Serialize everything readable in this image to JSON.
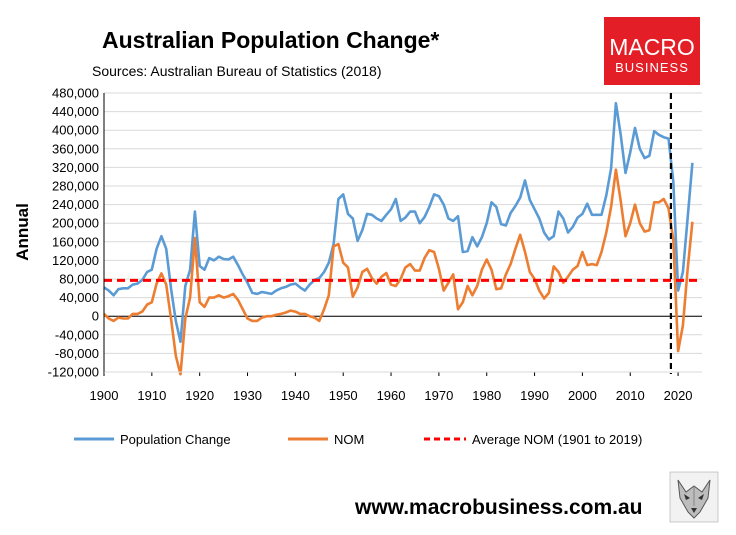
{
  "chart_data": {
    "type": "line",
    "title": "Australian Population Change*",
    "subtitle": "Sources: Australian Bureau of Statistics (2018)",
    "ylabel": "Annual",
    "xlabel": "",
    "xlim": [
      1900,
      2025
    ],
    "ylim": [
      -120000,
      480000
    ],
    "x_ticks": [
      1900,
      1910,
      1920,
      1930,
      1940,
      1950,
      1960,
      1970,
      1980,
      1990,
      2000,
      2010,
      2020
    ],
    "y_ticks": [
      -120000,
      -80000,
      -40000,
      0,
      40000,
      80000,
      120000,
      160000,
      200000,
      240000,
      280000,
      320000,
      360000,
      400000,
      440000,
      480000
    ],
    "y_tick_labels": [
      "-120,000",
      "-80,000",
      "-40,000",
      "0",
      "40,000",
      "80,000",
      "120,000",
      "160,000",
      "200,000",
      "240,000",
      "280,000",
      "320,000",
      "360,000",
      "400,000",
      "440,000",
      "480,000"
    ],
    "grid": true,
    "legend_position": "bottom",
    "vertical_marker_x": 2018.5,
    "series": [
      {
        "name": "Population Change",
        "color": "#5b9bd5",
        "style": "solid",
        "points": [
          [
            1900,
            62000
          ],
          [
            1901,
            55000
          ],
          [
            1902,
            45000
          ],
          [
            1903,
            58000
          ],
          [
            1904,
            60000
          ],
          [
            1905,
            60000
          ],
          [
            1906,
            68000
          ],
          [
            1907,
            70000
          ],
          [
            1908,
            78000
          ],
          [
            1909,
            95000
          ],
          [
            1910,
            100000
          ],
          [
            1911,
            145000
          ],
          [
            1912,
            172000
          ],
          [
            1913,
            145000
          ],
          [
            1914,
            60000
          ],
          [
            1915,
            -10000
          ],
          [
            1916,
            -55000
          ],
          [
            1917,
            65000
          ],
          [
            1918,
            100000
          ],
          [
            1919,
            225000
          ],
          [
            1920,
            108000
          ],
          [
            1921,
            100000
          ],
          [
            1922,
            125000
          ],
          [
            1923,
            120000
          ],
          [
            1924,
            128000
          ],
          [
            1925,
            123000
          ],
          [
            1926,
            122000
          ],
          [
            1927,
            128000
          ],
          [
            1928,
            110000
          ],
          [
            1929,
            90000
          ],
          [
            1930,
            72000
          ],
          [
            1931,
            50000
          ],
          [
            1932,
            48000
          ],
          [
            1933,
            52000
          ],
          [
            1934,
            50000
          ],
          [
            1935,
            48000
          ],
          [
            1936,
            55000
          ],
          [
            1937,
            60000
          ],
          [
            1938,
            63000
          ],
          [
            1939,
            68000
          ],
          [
            1940,
            70000
          ],
          [
            1941,
            62000
          ],
          [
            1942,
            55000
          ],
          [
            1943,
            68000
          ],
          [
            1944,
            78000
          ],
          [
            1945,
            82000
          ],
          [
            1946,
            95000
          ],
          [
            1947,
            115000
          ],
          [
            1948,
            155000
          ],
          [
            1949,
            252000
          ],
          [
            1950,
            262000
          ],
          [
            1951,
            220000
          ],
          [
            1952,
            210000
          ],
          [
            1953,
            162000
          ],
          [
            1954,
            185000
          ],
          [
            1955,
            220000
          ],
          [
            1956,
            218000
          ],
          [
            1957,
            210000
          ],
          [
            1958,
            205000
          ],
          [
            1959,
            218000
          ],
          [
            1960,
            230000
          ],
          [
            1961,
            252000
          ],
          [
            1962,
            205000
          ],
          [
            1963,
            212000
          ],
          [
            1964,
            225000
          ],
          [
            1965,
            225000
          ],
          [
            1966,
            200000
          ],
          [
            1967,
            213000
          ],
          [
            1968,
            235000
          ],
          [
            1969,
            262000
          ],
          [
            1970,
            258000
          ],
          [
            1971,
            240000
          ],
          [
            1972,
            210000
          ],
          [
            1973,
            205000
          ],
          [
            1974,
            215000
          ],
          [
            1975,
            138000
          ],
          [
            1976,
            140000
          ],
          [
            1977,
            170000
          ],
          [
            1978,
            150000
          ],
          [
            1979,
            170000
          ],
          [
            1980,
            200000
          ],
          [
            1981,
            245000
          ],
          [
            1982,
            235000
          ],
          [
            1983,
            198000
          ],
          [
            1984,
            195000
          ],
          [
            1985,
            222000
          ],
          [
            1986,
            237000
          ],
          [
            1987,
            255000
          ],
          [
            1988,
            292000
          ],
          [
            1989,
            250000
          ],
          [
            1990,
            230000
          ],
          [
            1991,
            210000
          ],
          [
            1992,
            180000
          ],
          [
            1993,
            165000
          ],
          [
            1994,
            172000
          ],
          [
            1995,
            225000
          ],
          [
            1996,
            210000
          ],
          [
            1997,
            180000
          ],
          [
            1998,
            192000
          ],
          [
            1999,
            212000
          ],
          [
            2000,
            220000
          ],
          [
            2001,
            242000
          ],
          [
            2002,
            218000
          ],
          [
            2003,
            218000
          ],
          [
            2004,
            218000
          ],
          [
            2005,
            260000
          ],
          [
            2006,
            318000
          ],
          [
            2007,
            458000
          ],
          [
            2008,
            390000
          ],
          [
            2009,
            308000
          ],
          [
            2010,
            352000
          ],
          [
            2011,
            405000
          ],
          [
            2012,
            360000
          ],
          [
            2013,
            340000
          ],
          [
            2014,
            345000
          ],
          [
            2015,
            398000
          ],
          [
            2016,
            390000
          ],
          [
            2017,
            385000
          ],
          [
            2018,
            382000
          ],
          [
            2019,
            290000
          ],
          [
            2020,
            55000
          ],
          [
            2021,
            95000
          ],
          [
            2022,
            210000
          ],
          [
            2023,
            330000
          ]
        ]
      },
      {
        "name": "NOM",
        "color": "#ed7d31",
        "style": "solid",
        "points": [
          [
            1900,
            5000
          ],
          [
            1901,
            -5000
          ],
          [
            1902,
            -10000
          ],
          [
            1903,
            -3000
          ],
          [
            1904,
            -5000
          ],
          [
            1905,
            -5000
          ],
          [
            1906,
            5000
          ],
          [
            1907,
            5000
          ],
          [
            1908,
            10000
          ],
          [
            1909,
            25000
          ],
          [
            1910,
            30000
          ],
          [
            1911,
            70000
          ],
          [
            1912,
            92000
          ],
          [
            1913,
            68000
          ],
          [
            1914,
            -5000
          ],
          [
            1915,
            -85000
          ],
          [
            1916,
            -125000
          ],
          [
            1917,
            -5000
          ],
          [
            1918,
            40000
          ],
          [
            1919,
            168000
          ],
          [
            1920,
            30000
          ],
          [
            1921,
            20000
          ],
          [
            1922,
            40000
          ],
          [
            1923,
            40000
          ],
          [
            1924,
            45000
          ],
          [
            1925,
            40000
          ],
          [
            1926,
            43000
          ],
          [
            1927,
            48000
          ],
          [
            1928,
            35000
          ],
          [
            1929,
            15000
          ],
          [
            1930,
            -5000
          ],
          [
            1931,
            -10000
          ],
          [
            1932,
            -10000
          ],
          [
            1933,
            -3000
          ],
          [
            1934,
            0
          ],
          [
            1935,
            0
          ],
          [
            1936,
            3000
          ],
          [
            1937,
            5000
          ],
          [
            1938,
            8000
          ],
          [
            1939,
            12000
          ],
          [
            1940,
            10000
          ],
          [
            1941,
            5000
          ],
          [
            1942,
            5000
          ],
          [
            1943,
            0
          ],
          [
            1944,
            -3000
          ],
          [
            1945,
            -10000
          ],
          [
            1946,
            15000
          ],
          [
            1947,
            45000
          ],
          [
            1948,
            150000
          ],
          [
            1949,
            155000
          ],
          [
            1950,
            115000
          ],
          [
            1951,
            105000
          ],
          [
            1952,
            42000
          ],
          [
            1953,
            62000
          ],
          [
            1954,
            95000
          ],
          [
            1955,
            102000
          ],
          [
            1956,
            82000
          ],
          [
            1957,
            70000
          ],
          [
            1958,
            85000
          ],
          [
            1959,
            93000
          ],
          [
            1960,
            68000
          ],
          [
            1961,
            65000
          ],
          [
            1962,
            80000
          ],
          [
            1963,
            105000
          ],
          [
            1964,
            112000
          ],
          [
            1965,
            98000
          ],
          [
            1966,
            98000
          ],
          [
            1967,
            125000
          ],
          [
            1968,
            142000
          ],
          [
            1969,
            138000
          ],
          [
            1970,
            102000
          ],
          [
            1971,
            55000
          ],
          [
            1972,
            72000
          ],
          [
            1973,
            90000
          ],
          [
            1974,
            15000
          ],
          [
            1975,
            30000
          ],
          [
            1976,
            65000
          ],
          [
            1977,
            45000
          ],
          [
            1978,
            65000
          ],
          [
            1979,
            100000
          ],
          [
            1980,
            122000
          ],
          [
            1981,
            100000
          ],
          [
            1982,
            58000
          ],
          [
            1983,
            60000
          ],
          [
            1984,
            90000
          ],
          [
            1985,
            112000
          ],
          [
            1986,
            145000
          ],
          [
            1987,
            175000
          ],
          [
            1988,
            138000
          ],
          [
            1989,
            95000
          ],
          [
            1990,
            80000
          ],
          [
            1991,
            55000
          ],
          [
            1992,
            38000
          ],
          [
            1993,
            50000
          ],
          [
            1994,
            107000
          ],
          [
            1995,
            95000
          ],
          [
            1996,
            72000
          ],
          [
            1997,
            85000
          ],
          [
            1998,
            100000
          ],
          [
            1999,
            108000
          ],
          [
            2000,
            138000
          ],
          [
            2001,
            110000
          ],
          [
            2002,
            112000
          ],
          [
            2003,
            110000
          ],
          [
            2004,
            138000
          ],
          [
            2005,
            180000
          ],
          [
            2006,
            235000
          ],
          [
            2007,
            315000
          ],
          [
            2008,
            248000
          ],
          [
            2009,
            172000
          ],
          [
            2010,
            200000
          ],
          [
            2011,
            240000
          ],
          [
            2012,
            200000
          ],
          [
            2013,
            182000
          ],
          [
            2014,
            185000
          ],
          [
            2015,
            245000
          ],
          [
            2016,
            245000
          ],
          [
            2017,
            252000
          ],
          [
            2018,
            232000
          ],
          [
            2019,
            165000
          ],
          [
            2020,
            -75000
          ],
          [
            2021,
            -20000
          ],
          [
            2022,
            100000
          ],
          [
            2023,
            203000
          ]
        ]
      },
      {
        "name": "Average NOM (1901 to 2019)",
        "color": "#ff0000",
        "style": "dashed",
        "value": 77000
      }
    ]
  },
  "brand": {
    "top": "MACRO",
    "bottom": "BUSINESS",
    "color": "#e31e26"
  },
  "footer": {
    "url": "www.macrobusiness.com.au",
    "mascot": "wolf-icon"
  }
}
